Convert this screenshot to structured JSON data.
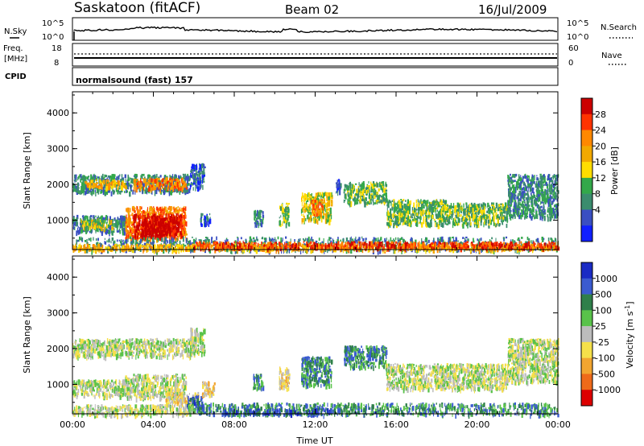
{
  "header": {
    "station": "Saskatoon (fitACF)",
    "beam": "Beam 02",
    "date": "16/Jul/2009"
  },
  "status_panels": {
    "nsky_label": "N.Sky",
    "nsky_ticks": [
      "10^5",
      "10^0"
    ],
    "nsearch_label": "N.Search",
    "nsearch_ticks": [
      "10^5",
      "10^0"
    ],
    "freq_label": "Freq.",
    "freq_unit": "[MHz]",
    "freq_ticks": [
      "18",
      "8"
    ],
    "nave_label": "Nave",
    "nave_ticks": [
      "60",
      "0"
    ],
    "cpid_label": "CPID",
    "cpid_text": "normalsound (fast) 157"
  },
  "chart_data": [
    {
      "type": "heatmap",
      "name": "power",
      "ylabel": "Slant Range [km]",
      "yticks": [
        1000,
        2000,
        3000,
        4000
      ],
      "ylim": [
        180,
        4590
      ],
      "xlim": [
        0,
        24
      ],
      "colorbar": {
        "label": "Power [dB]",
        "ticks": [
          "28",
          "24",
          "20",
          "16",
          "12",
          "8",
          "4"
        ],
        "colors": [
          "#cc0000",
          "#ff3300",
          "#ff8800",
          "#f2a900",
          "#ffdd00",
          "#33a84a",
          "#3b8c6e",
          "#3a4fc2",
          "#1020ff"
        ]
      },
      "regions": [
        {
          "t0": 0.0,
          "t1": 5.8,
          "r0": 1800,
          "r1": 2300,
          "v": 2
        },
        {
          "t0": 0.6,
          "t1": 2.6,
          "r0": 1950,
          "r1": 2150,
          "v": 5
        },
        {
          "t0": 3.0,
          "t1": 5.6,
          "r0": 1900,
          "r1": 2200,
          "v": 6
        },
        {
          "t0": 5.8,
          "t1": 6.5,
          "r0": 1900,
          "r1": 2600,
          "v": 1
        },
        {
          "t0": 0.0,
          "t1": 2.6,
          "r0": 700,
          "r1": 1150,
          "v": 2
        },
        {
          "t0": 0.4,
          "t1": 2.0,
          "r0": 800,
          "r1": 1050,
          "v": 4
        },
        {
          "t0": 2.6,
          "t1": 5.6,
          "r0": 500,
          "r1": 1400,
          "v": 6
        },
        {
          "t0": 3.0,
          "t1": 5.4,
          "r0": 550,
          "r1": 1200,
          "v": 8
        },
        {
          "t0": 3.4,
          "t1": 4.8,
          "r0": 600,
          "r1": 1000,
          "v": 9
        },
        {
          "t0": 6.3,
          "t1": 6.8,
          "r0": 900,
          "r1": 1200,
          "v": 1
        },
        {
          "t0": 8.9,
          "t1": 9.4,
          "r0": 900,
          "r1": 1300,
          "v": 2
        },
        {
          "t0": 10.2,
          "t1": 10.7,
          "r0": 900,
          "r1": 1500,
          "v": 3
        },
        {
          "t0": 11.3,
          "t1": 12.8,
          "r0": 1000,
          "r1": 1800,
          "v": 4
        },
        {
          "t0": 11.8,
          "t1": 12.4,
          "r0": 1200,
          "r1": 1600,
          "v": 6
        },
        {
          "t0": 13.0,
          "t1": 13.3,
          "r0": 1800,
          "r1": 2200,
          "v": 1
        },
        {
          "t0": 13.4,
          "t1": 15.5,
          "r0": 1500,
          "r1": 2100,
          "v": 3
        },
        {
          "t0": 15.5,
          "t1": 18.5,
          "r0": 900,
          "r1": 1600,
          "v": 3
        },
        {
          "t0": 18.5,
          "t1": 21.5,
          "r0": 900,
          "r1": 1500,
          "v": 3
        },
        {
          "t0": 21.5,
          "t1": 24.0,
          "r0": 1100,
          "r1": 2300,
          "v": 2
        },
        {
          "t0": 0.0,
          "t1": 24.0,
          "r0": 180,
          "r1": 550,
          "v": 2
        },
        {
          "t0": 0.0,
          "t1": 24.0,
          "r0": 200,
          "r1": 350,
          "v": 5
        },
        {
          "t0": 6.0,
          "t1": 24.0,
          "r0": 250,
          "r1": 420,
          "v": 7
        }
      ]
    },
    {
      "type": "heatmap",
      "name": "velocity",
      "ylabel": "Slant Range [km]",
      "yticks": [
        1000,
        2000,
        3000,
        4000
      ],
      "ylim": [
        180,
        4590
      ],
      "xlim": [
        0,
        24
      ],
      "xlabel": "Time UT",
      "xticks": [
        "00:00",
        "04:00",
        "08:00",
        "12:00",
        "16:00",
        "20:00",
        "00:00"
      ],
      "colorbar": {
        "label": "Velocity [m s",
        "label_sup": "-1",
        "label_tail": "]",
        "ticks": [
          "1000",
          "500",
          "100",
          "25",
          "-25",
          "-100",
          "-500",
          "-1000"
        ],
        "colors": [
          "#1a2bc4",
          "#3b5bd0",
          "#2f7f4a",
          "#59c24a",
          "#bcbcbc",
          "#f5e04a",
          "#f2a530",
          "#ee6a1a",
          "#dd0000"
        ]
      },
      "regions": [
        {
          "t0": 0.0,
          "t1": 6.0,
          "r0": 1800,
          "r1": 2300,
          "v": 4
        },
        {
          "t0": 5.8,
          "t1": 6.5,
          "r0": 1900,
          "r1": 2600,
          "v": 4
        },
        {
          "t0": 0.0,
          "t1": 2.6,
          "r0": 700,
          "r1": 1150,
          "v": 4
        },
        {
          "t0": 2.6,
          "t1": 5.6,
          "r0": 650,
          "r1": 1300,
          "v": 4
        },
        {
          "t0": 4.6,
          "t1": 6.2,
          "r0": 500,
          "r1": 800,
          "v": 3
        },
        {
          "t0": 5.6,
          "t1": 6.4,
          "r0": 300,
          "r1": 700,
          "v": 7
        },
        {
          "t0": 6.4,
          "t1": 7.0,
          "r0": 700,
          "r1": 1100,
          "v": 3
        },
        {
          "t0": 8.9,
          "t1": 9.4,
          "r0": 900,
          "r1": 1300,
          "v": 6
        },
        {
          "t0": 10.2,
          "t1": 10.7,
          "r0": 900,
          "r1": 1500,
          "v": 3
        },
        {
          "t0": 11.3,
          "t1": 12.8,
          "r0": 1000,
          "r1": 1800,
          "v": 6
        },
        {
          "t0": 13.4,
          "t1": 15.5,
          "r0": 1500,
          "r1": 2100,
          "v": 6
        },
        {
          "t0": 15.5,
          "t1": 21.5,
          "r0": 900,
          "r1": 1600,
          "v": 4
        },
        {
          "t0": 21.5,
          "t1": 24.0,
          "r0": 1100,
          "r1": 2300,
          "v": 4
        },
        {
          "t0": 6.0,
          "t1": 24.0,
          "r0": 180,
          "r1": 500,
          "v": 6
        },
        {
          "t0": 0.0,
          "t1": 6.0,
          "r0": 180,
          "r1": 450,
          "v": 4
        },
        {
          "t0": 7.5,
          "t1": 13.0,
          "r0": 200,
          "r1": 350,
          "v": 7
        }
      ]
    }
  ]
}
